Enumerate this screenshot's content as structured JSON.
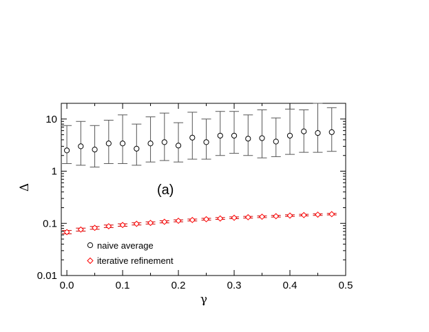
{
  "chart_data": {
    "type": "scatter",
    "xlabel": "γ",
    "ylabel": "Δ",
    "panel_label": "(a)",
    "xlim": [
      -0.01,
      0.5
    ],
    "ylim": [
      0.01,
      20
    ],
    "yscale": "log",
    "xticks": [
      0.0,
      0.1,
      0.2,
      0.3,
      0.4,
      0.5
    ],
    "xtick_labels": [
      "0.0",
      "0.1",
      "0.2",
      "0.3",
      "0.4",
      "0.5"
    ],
    "yticks": [
      0.01,
      0.1,
      1,
      10
    ],
    "ytick_labels": [
      "0.01",
      "0.1",
      "1",
      "10"
    ],
    "grid": false,
    "legend_position": "bottom-left",
    "x": [
      0.0,
      0.025,
      0.05,
      0.075,
      0.1,
      0.125,
      0.15,
      0.175,
      0.2,
      0.225,
      0.25,
      0.275,
      0.3,
      0.325,
      0.35,
      0.375,
      0.4,
      0.425,
      0.45,
      0.475
    ],
    "series": [
      {
        "name": "naive average",
        "marker": "circle",
        "color": "#000000",
        "errorbar_color": "#555555",
        "values": [
          2.5,
          3.0,
          2.6,
          3.4,
          3.4,
          2.7,
          3.4,
          3.6,
          3.1,
          4.4,
          3.6,
          4.8,
          4.8,
          4.2,
          4.3,
          3.7,
          4.8,
          5.8,
          5.4,
          5.6
        ],
        "lower": [
          1.4,
          1.3,
          1.2,
          1.4,
          1.4,
          1.3,
          1.5,
          1.6,
          1.5,
          1.7,
          1.7,
          2.0,
          2.2,
          2.0,
          1.8,
          1.9,
          2.1,
          2.3,
          2.3,
          2.4
        ],
        "upper": [
          7.5,
          9.0,
          7.5,
          9.5,
          12.0,
          8.0,
          11.0,
          13.0,
          8.5,
          13.5,
          10.0,
          14.0,
          14.0,
          12.0,
          15.0,
          10.5,
          15.5,
          15.0,
          20.0,
          16.5
        ]
      },
      {
        "name": "iterative refinement",
        "marker": "diamond",
        "color": "#ff0000",
        "errorbar_color": "#cc0000",
        "values": [
          0.068,
          0.076,
          0.082,
          0.088,
          0.093,
          0.098,
          0.102,
          0.107,
          0.112,
          0.116,
          0.12,
          0.124,
          0.128,
          0.131,
          0.134,
          0.137,
          0.141,
          0.144,
          0.147,
          0.15
        ],
        "lower": [
          0.063,
          0.071,
          0.077,
          0.083,
          0.088,
          0.093,
          0.097,
          0.102,
          0.107,
          0.111,
          0.115,
          0.119,
          0.123,
          0.126,
          0.129,
          0.132,
          0.136,
          0.139,
          0.142,
          0.145
        ],
        "upper": [
          0.073,
          0.081,
          0.087,
          0.093,
          0.098,
          0.103,
          0.107,
          0.112,
          0.117,
          0.121,
          0.125,
          0.129,
          0.133,
          0.136,
          0.139,
          0.142,
          0.146,
          0.149,
          0.152,
          0.155
        ]
      }
    ]
  }
}
